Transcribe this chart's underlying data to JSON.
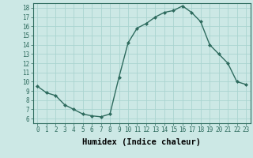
{
  "x": [
    0,
    1,
    2,
    3,
    4,
    5,
    6,
    7,
    8,
    9,
    10,
    11,
    12,
    13,
    14,
    15,
    16,
    17,
    18,
    19,
    20,
    21,
    22,
    23
  ],
  "y": [
    9.5,
    8.8,
    8.5,
    7.5,
    7.0,
    6.5,
    6.3,
    6.2,
    6.5,
    10.5,
    14.2,
    15.8,
    16.3,
    17.0,
    17.5,
    17.7,
    18.2,
    17.5,
    16.5,
    14.0,
    13.0,
    12.0,
    10.0,
    9.7
  ],
  "line_color": "#2e6b5e",
  "marker": "D",
  "marker_size": 2.0,
  "bg_color": "#cce8e5",
  "grid_color": "#aad4d0",
  "xlabel": "Humidex (Indice chaleur)",
  "xlim": [
    -0.5,
    23.5
  ],
  "ylim": [
    5.5,
    18.5
  ],
  "yticks": [
    6,
    7,
    8,
    9,
    10,
    11,
    12,
    13,
    14,
    15,
    16,
    17,
    18
  ],
  "xticks": [
    0,
    1,
    2,
    3,
    4,
    5,
    6,
    7,
    8,
    9,
    10,
    11,
    12,
    13,
    14,
    15,
    16,
    17,
    18,
    19,
    20,
    21,
    22,
    23
  ],
  "tick_fontsize": 5.5,
  "label_fontsize": 7.5,
  "line_width": 1.0
}
